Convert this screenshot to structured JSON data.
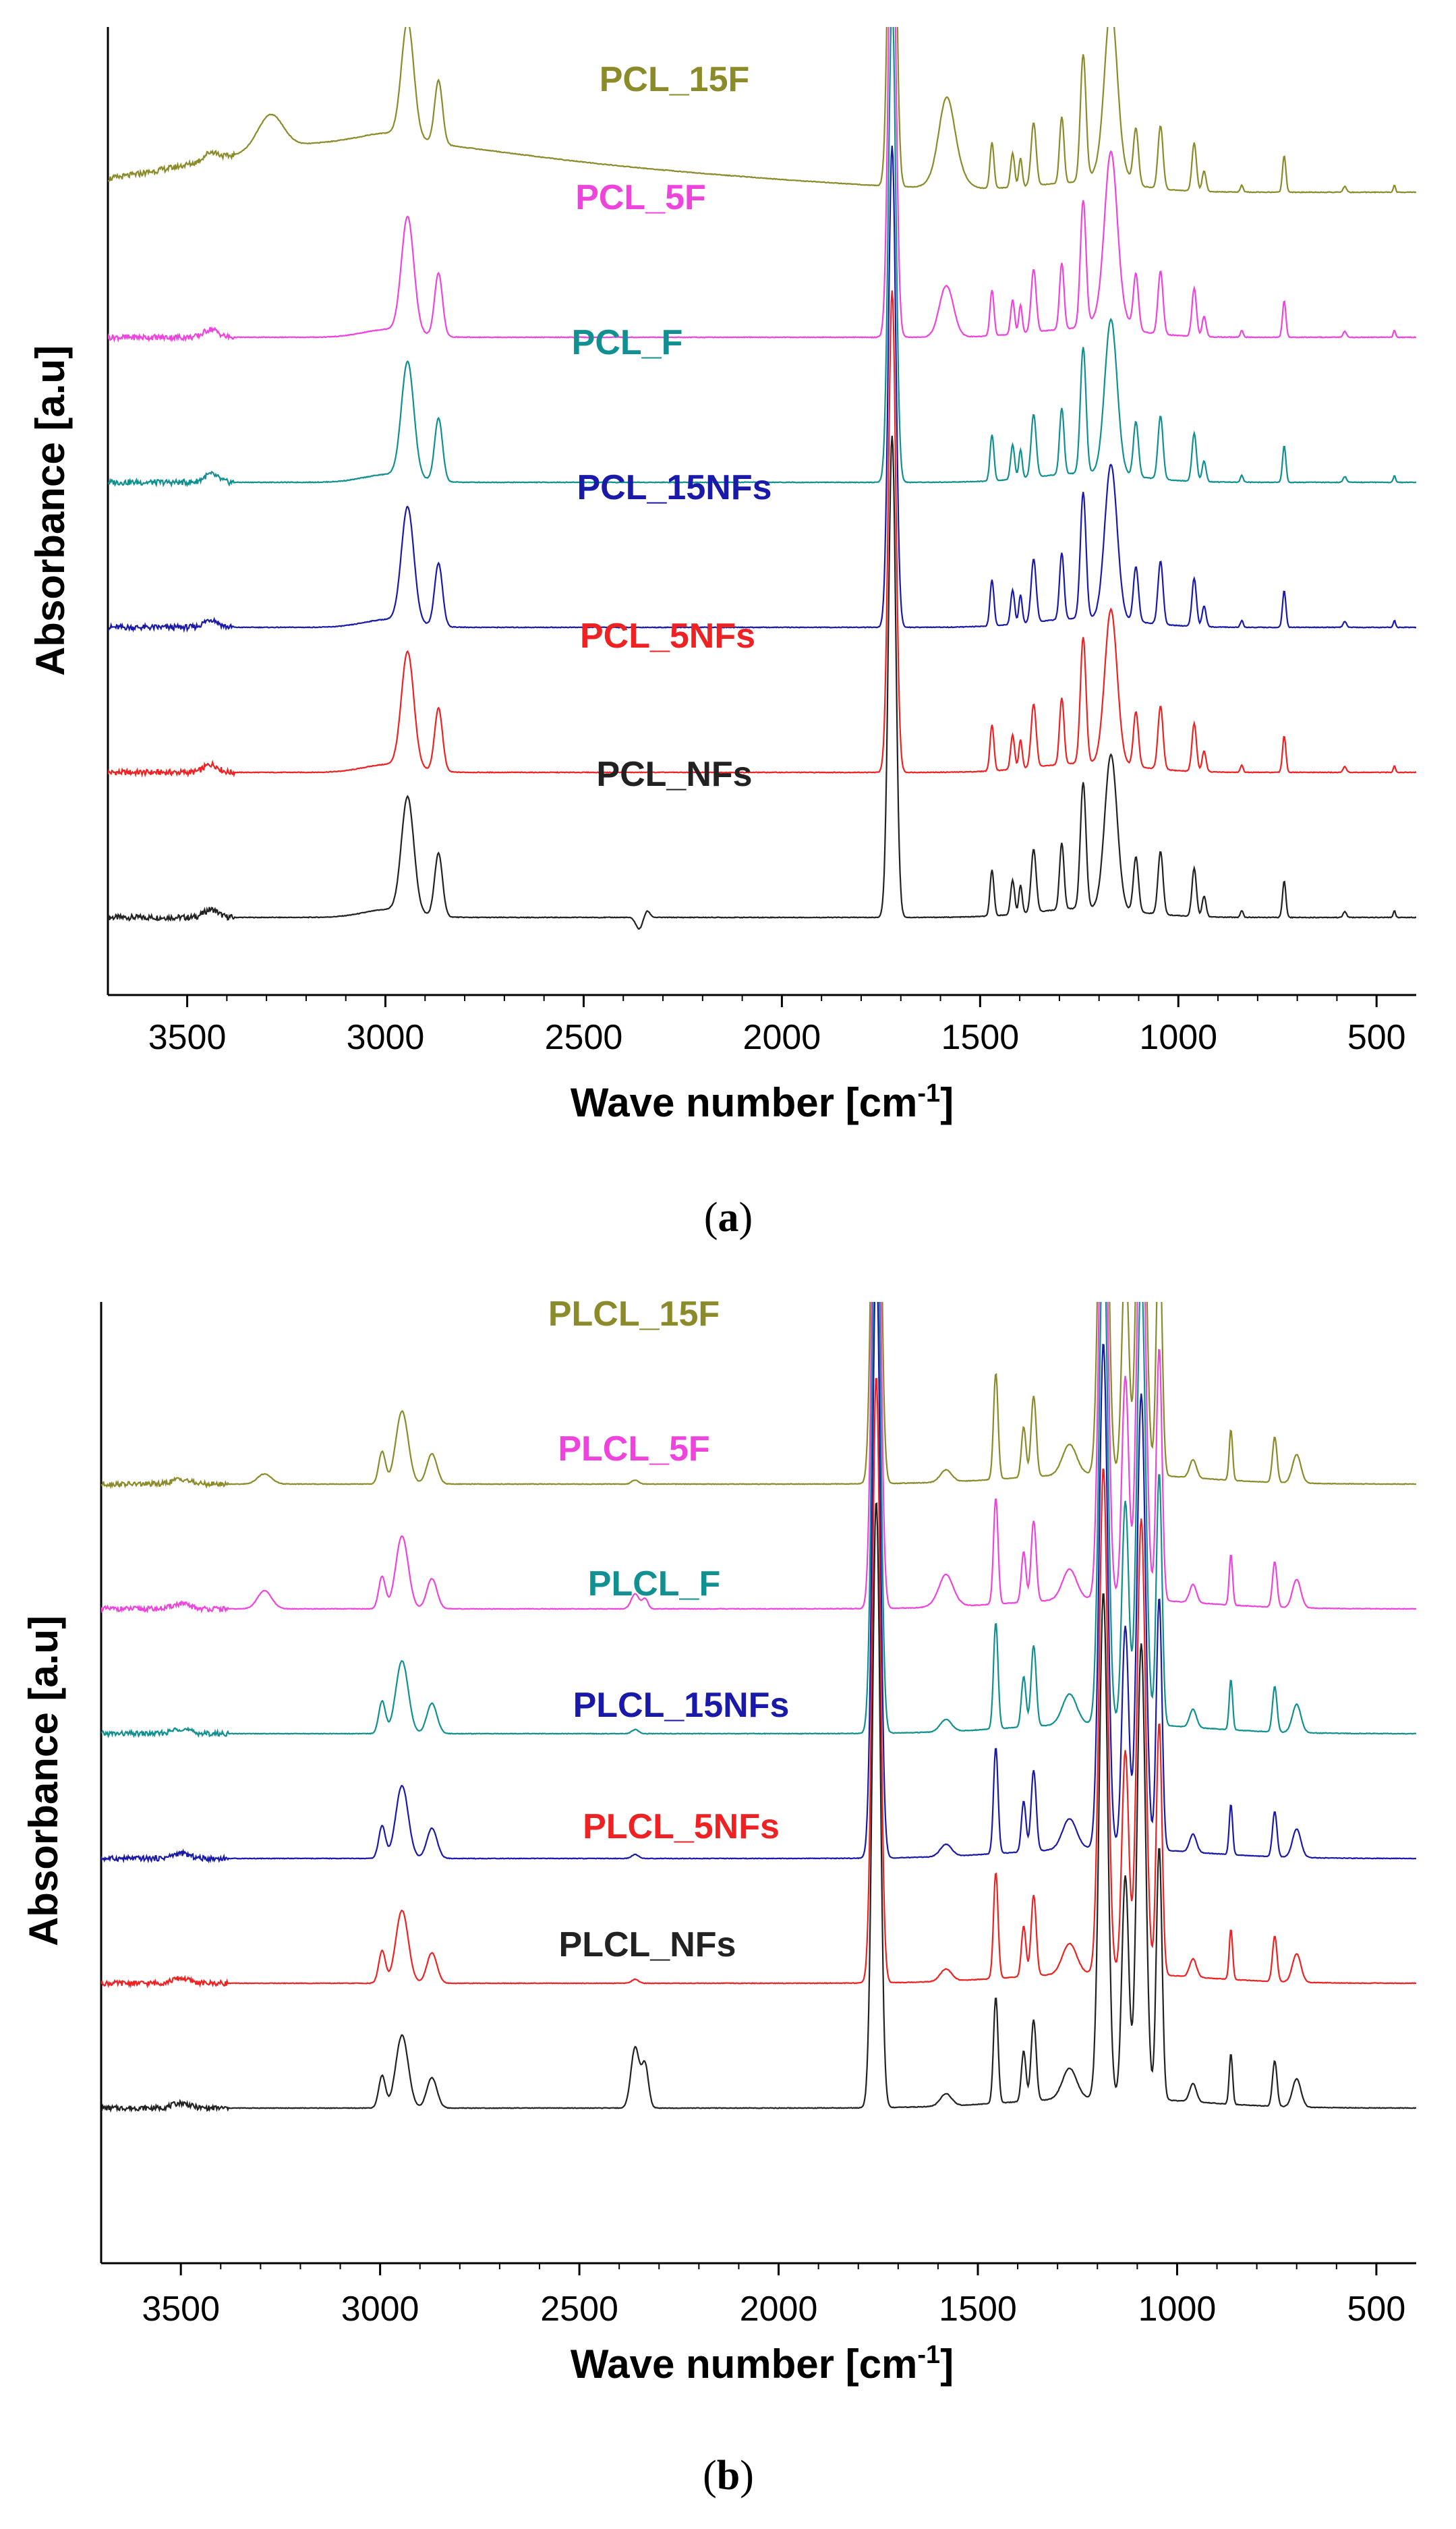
{
  "chart_data": [
    {
      "type": "line",
      "panel_label": "a",
      "panel_label_prefix": "(",
      "panel_label_suffix": ")",
      "xlabel": "Wave number [cm",
      "xlabel_sup": "-1",
      "xlabel_tail": "]",
      "ylabel": "Absorbance [a.u]",
      "xlim": [
        3700,
        400
      ],
      "x_ticks": [
        3500,
        3000,
        2500,
        2000,
        1500,
        1000,
        500
      ],
      "x_tick_labels": [
        "3500",
        "3000",
        "2500",
        "2000",
        "1500",
        "1000",
        "500"
      ],
      "series": [
        {
          "name": "PCL_15F",
          "color": "#8b8b2a",
          "offset": 5
        },
        {
          "name": "PCL_5F",
          "color": "#ee44dd",
          "offset": 4
        },
        {
          "name": "PCL_F",
          "color": "#109090",
          "offset": 3
        },
        {
          "name": "PCL_15NFs",
          "color": "#1a1aaa",
          "offset": 2
        },
        {
          "name": "PCL_5NFs",
          "color": "#ee2222",
          "offset": 1
        },
        {
          "name": "PCL_NFs",
          "color": "#222222",
          "offset": 0
        }
      ],
      "peaks_cm": [
        3440,
        2944,
        2866,
        1722,
        1470,
        1418,
        1365,
        1294,
        1240,
        1190,
        1170,
        1107,
        1045,
        960,
        733
      ]
    },
    {
      "type": "line",
      "panel_label": "b",
      "panel_label_prefix": "(",
      "panel_label_suffix": ")",
      "xlabel": "Wave number [cm",
      "xlabel_sup": "-1",
      "xlabel_tail": "]",
      "ylabel": "Absorbance [a.u]",
      "xlim": [
        3700,
        400
      ],
      "x_ticks": [
        3500,
        3000,
        2500,
        2000,
        1500,
        1000,
        500
      ],
      "x_tick_labels": [
        "3500",
        "3000",
        "2500",
        "2000",
        "1500",
        "1000",
        "500"
      ],
      "series": [
        {
          "name": "PLCL_15F",
          "color": "#8b8b2a",
          "offset": 5
        },
        {
          "name": "PLCL_5F",
          "color": "#ee44dd",
          "offset": 4
        },
        {
          "name": "PLCL_F",
          "color": "#109090",
          "offset": 3
        },
        {
          "name": "PLCL_15NFs",
          "color": "#1a1aaa",
          "offset": 2
        },
        {
          "name": "PLCL_5NFs",
          "color": "#ee2222",
          "offset": 1
        },
        {
          "name": "PLCL_NFs",
          "color": "#222222",
          "offset": 0
        }
      ],
      "peaks_cm": [
        2995,
        2945,
        2870,
        1755,
        1455,
        1385,
        1360,
        1185,
        1130,
        1090,
        1045,
        865,
        755
      ]
    }
  ]
}
